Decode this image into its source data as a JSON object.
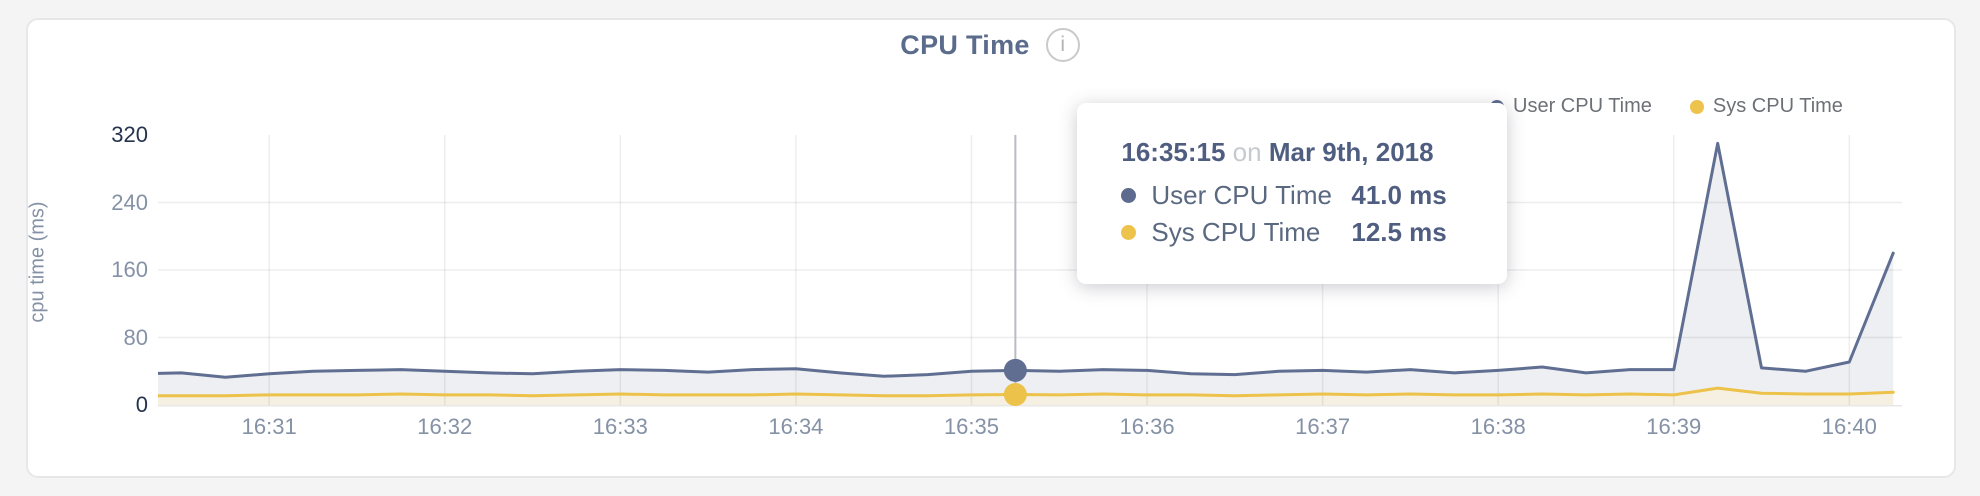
{
  "page": {
    "background": "#f4f4f5"
  },
  "chart": {
    "title": "CPU Time",
    "info_glyph": "i",
    "ylabel": "cpu time (ms)",
    "legend": [
      {
        "label": "User CPU Time",
        "color": "#5d6c8e"
      },
      {
        "label": "Sys CPU Time",
        "color": "#eec34b"
      }
    ]
  },
  "tooltip": {
    "time": "16:35:15",
    "connector": "on",
    "date": "Mar 9th, 2018",
    "rows": [
      {
        "label": "User CPU Time",
        "value": "41.0 ms",
        "color": "#5d6c8e"
      },
      {
        "label": "Sys CPU Time",
        "value": "12.5 ms",
        "color": "#eec34b"
      }
    ]
  },
  "chart_data": {
    "type": "area",
    "title": "CPU Time",
    "xlabel": "",
    "ylabel": "cpu time (ms)",
    "ylim": [
      0,
      320
    ],
    "xlim": [
      "16:30:22",
      "16:40:18"
    ],
    "grid": true,
    "legend_position": "top-right",
    "x": [
      "16:30:15",
      "16:30:30",
      "16:30:45",
      "16:31:00",
      "16:31:15",
      "16:31:30",
      "16:31:45",
      "16:32:00",
      "16:32:15",
      "16:32:30",
      "16:32:45",
      "16:33:00",
      "16:33:15",
      "16:33:30",
      "16:33:45",
      "16:34:00",
      "16:34:15",
      "16:34:30",
      "16:34:45",
      "16:35:00",
      "16:35:15",
      "16:35:30",
      "16:35:45",
      "16:36:00",
      "16:36:15",
      "16:36:30",
      "16:36:45",
      "16:37:00",
      "16:37:15",
      "16:37:30",
      "16:37:45",
      "16:38:00",
      "16:38:15",
      "16:38:30",
      "16:38:45",
      "16:39:00",
      "16:39:15",
      "16:39:30",
      "16:39:45",
      "16:40:00",
      "16:40:15"
    ],
    "series": [
      {
        "name": "User CPU Time",
        "color": "#5f6e91",
        "fill": "#edeff3",
        "values": [
          37,
          38,
          33,
          37,
          40,
          41,
          42,
          40,
          38,
          37,
          40,
          42,
          41,
          39,
          42,
          43,
          38,
          34,
          36,
          40,
          41,
          40,
          42,
          41,
          37,
          36,
          40,
          41,
          39,
          42,
          38,
          41,
          45,
          38,
          42,
          42,
          310,
          44,
          40,
          51,
          180
        ]
      },
      {
        "name": "Sys CPU Time",
        "color": "#edc24a",
        "fill": "#f5f0e1",
        "values": [
          11,
          11,
          11,
          12,
          12,
          12,
          13,
          12,
          12,
          11,
          12,
          13,
          12,
          12,
          12,
          13,
          12,
          11,
          11,
          12,
          12.5,
          12,
          13,
          12,
          12,
          11,
          12,
          13,
          12,
          13,
          12,
          12,
          13,
          12,
          13,
          12,
          20,
          14,
          13,
          13,
          15
        ]
      }
    ],
    "yticks": [
      {
        "v": 0,
        "label": "0",
        "strong": true,
        "grid": false
      },
      {
        "v": 80,
        "label": "80",
        "strong": false,
        "grid": true
      },
      {
        "v": 160,
        "label": "160",
        "strong": false,
        "grid": true
      },
      {
        "v": 240,
        "label": "240",
        "strong": false,
        "grid": true
      },
      {
        "v": 320,
        "label": "320",
        "strong": true,
        "grid": false
      }
    ],
    "xticks": [
      {
        "t": "16:31:00",
        "label": "16:31"
      },
      {
        "t": "16:32:00",
        "label": "16:32"
      },
      {
        "t": "16:33:00",
        "label": "16:33"
      },
      {
        "t": "16:34:00",
        "label": "16:34"
      },
      {
        "t": "16:35:00",
        "label": "16:35"
      },
      {
        "t": "16:36:00",
        "label": "16:36"
      },
      {
        "t": "16:37:00",
        "label": "16:37"
      },
      {
        "t": "16:38:00",
        "label": "16:38"
      },
      {
        "t": "16:39:00",
        "label": "16:39"
      },
      {
        "t": "16:40:00",
        "label": "16:40"
      }
    ],
    "highlight": {
      "time": "16:35:15",
      "values": [
        41.0,
        12.5
      ]
    }
  }
}
